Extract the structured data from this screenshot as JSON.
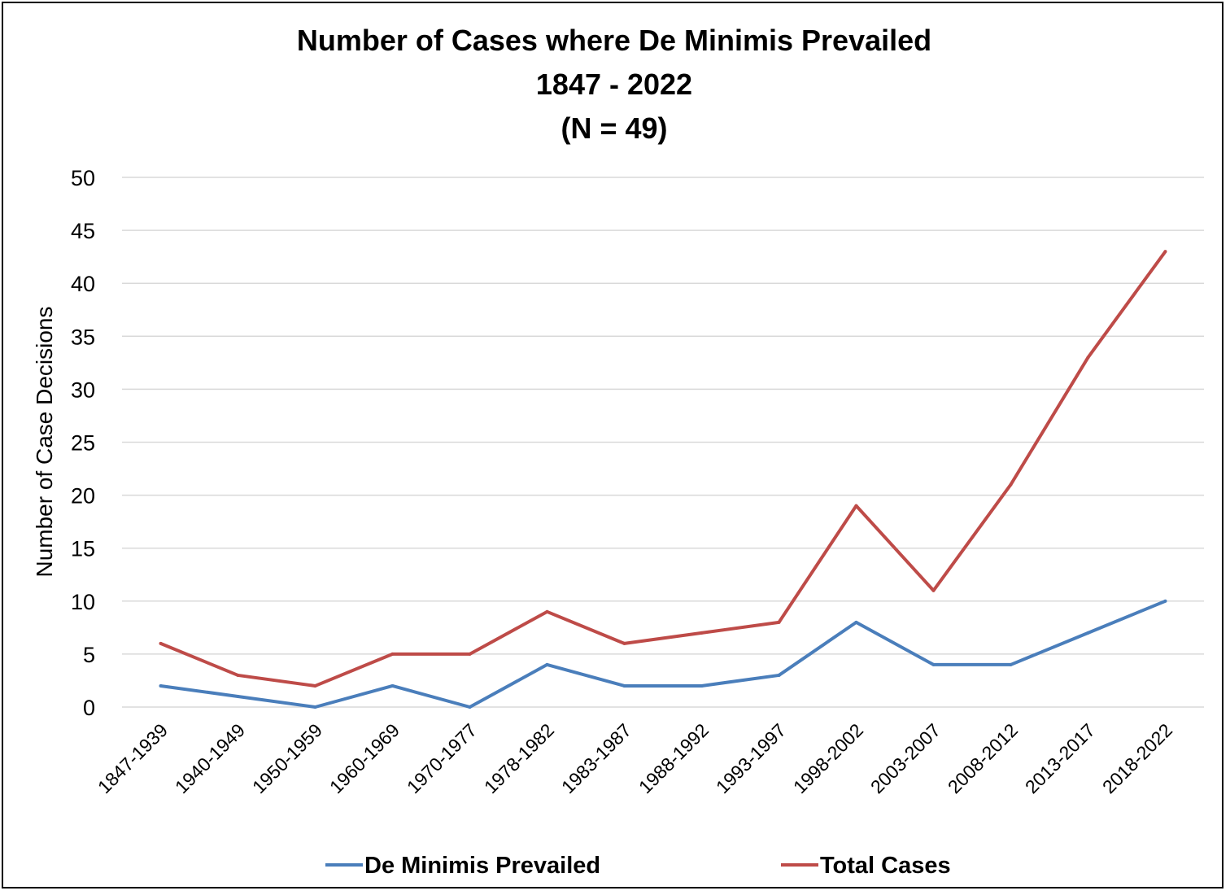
{
  "chart_data": {
    "type": "line",
    "title": [
      "Number of Cases where De Minimis Prevailed",
      "1847 - 2022",
      "(N = 49)"
    ],
    "xlabel": "",
    "ylabel": "Number of Case Decisions",
    "ylim": [
      0,
      50
    ],
    "yticks": [
      "0",
      "5",
      "10",
      "15",
      "20",
      "25",
      "30",
      "35",
      "40",
      "45",
      "50"
    ],
    "grid": true,
    "legend_position": "bottom",
    "categories": [
      "1847-1939",
      "1940-1949",
      "1950-1959",
      "1960-1969",
      "1970-1977",
      "1978-1982",
      "1983-1987",
      "1988-1992",
      "1993-1997",
      "1998-2002",
      "2003-2007",
      "2008-2012",
      "2013-2017",
      "2018-2022"
    ],
    "series": [
      {
        "name": "De Minimis Prevailed",
        "color": "#4a7ebb",
        "values": [
          2,
          1,
          0,
          2,
          0,
          4,
          2,
          2,
          3,
          8,
          4,
          4,
          7,
          10
        ]
      },
      {
        "name": "Total Cases",
        "color": "#be4b48",
        "values": [
          6,
          3,
          2,
          5,
          5,
          9,
          6,
          7,
          8,
          19,
          11,
          21,
          33,
          43
        ]
      }
    ]
  }
}
